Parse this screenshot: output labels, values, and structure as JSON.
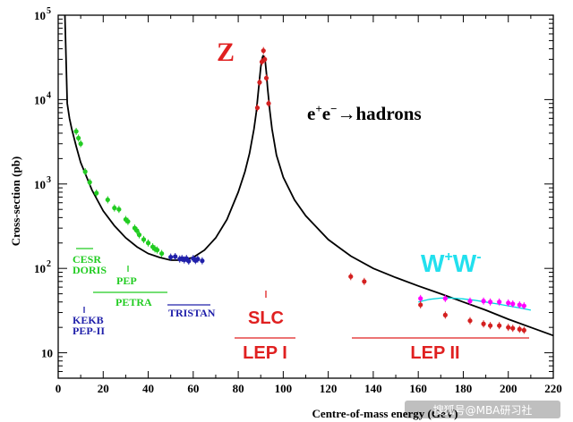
{
  "chart_data": {
    "type": "line",
    "xlabel": "Centre-of-mass energy (GeV)",
    "ylabel": "Cross-section (pb)",
    "xlim": [
      0,
      220
    ],
    "ylim": [
      5,
      100000
    ],
    "yscale": "log",
    "grid": false,
    "x_ticks": [
      "0",
      "20",
      "40",
      "60",
      "80",
      "100",
      "120",
      "140",
      "160",
      "180",
      "200",
      "220"
    ],
    "y_ticks": [
      {
        "value": 10,
        "label": "10",
        "exp": ""
      },
      {
        "value": 100,
        "label": "10",
        "exp": "2"
      },
      {
        "value": 1000,
        "label": "10",
        "exp": "3"
      },
      {
        "value": 10000,
        "label": "10",
        "exp": "4"
      },
      {
        "value": 100000,
        "label": "10",
        "exp": "5"
      }
    ],
    "series": [
      {
        "type": "line",
        "color": "#000000",
        "x": [
          3,
          4,
          5,
          6,
          8,
          10,
          15,
          20,
          25,
          30,
          35,
          40,
          45,
          50,
          55,
          60,
          65,
          70,
          75,
          80,
          83,
          85,
          87,
          88,
          89,
          90,
          90.5,
          91,
          91.2,
          91.5,
          92,
          92.5,
          93,
          94,
          95,
          97,
          100,
          105,
          110,
          120,
          130,
          140,
          150,
          160,
          170,
          180,
          190,
          200,
          210,
          220
        ],
        "y": [
          100000,
          9000,
          6000,
          4500,
          2800,
          1800,
          850,
          480,
          320,
          230,
          180,
          150,
          135,
          125,
          125,
          135,
          165,
          230,
          380,
          800,
          1400,
          2300,
          4500,
          7000,
          13000,
          24000,
          30000,
          33000,
          33000,
          32000,
          28000,
          21000,
          14000,
          7500,
          4500,
          2200,
          1200,
          650,
          420,
          220,
          140,
          100,
          78,
          62,
          50,
          40,
          32,
          25,
          20,
          16
        ]
      },
      {
        "type": "line",
        "color": "#00d8e0",
        "x": [
          160,
          165,
          170,
          175,
          180,
          185,
          190,
          195,
          200,
          205,
          210
        ],
        "y": [
          40,
          43,
          44.5,
          44.5,
          43.5,
          42,
          40,
          38,
          36,
          34,
          32
        ]
      },
      {
        "type": "scatter",
        "color": "#ff00ff",
        "x": [
          161,
          172,
          183,
          189,
          192,
          196,
          200,
          202,
          205,
          207
        ],
        "y": [
          44,
          44,
          41,
          41,
          40,
          40,
          39,
          38,
          37,
          36
        ]
      },
      {
        "type": "scatter",
        "color": "#d42020",
        "x": [
          88.5,
          89.5,
          90.5,
          91.2,
          91.8,
          92.5,
          93.5,
          130,
          136,
          161,
          172,
          183,
          189,
          192,
          196,
          200,
          202,
          205,
          207
        ],
        "y": [
          8000,
          16000,
          28000,
          38000,
          30000,
          18000,
          9000,
          80,
          70,
          37,
          28,
          24,
          22,
          21,
          21,
          20,
          19.5,
          19,
          18.5
        ]
      },
      {
        "type": "scatter",
        "color": "#22cc22",
        "x": [
          8,
          9,
          10,
          12,
          14,
          17,
          22,
          25,
          27,
          30,
          31,
          34,
          35,
          36,
          38,
          40,
          42,
          43,
          44,
          46
        ],
        "y": [
          4200,
          3500,
          3000,
          1400,
          1050,
          780,
          650,
          520,
          500,
          380,
          360,
          300,
          280,
          250,
          220,
          200,
          180,
          170,
          165,
          150
        ]
      },
      {
        "type": "scatter",
        "color": "#2020aa",
        "x": [
          50,
          52,
          54,
          55,
          56,
          57,
          58,
          60,
          61,
          62,
          64
        ],
        "y": [
          136,
          138,
          129,
          131,
          126,
          131,
          122,
          131,
          124,
          129,
          123
        ]
      }
    ],
    "annotations": [
      {
        "id": "z",
        "text": "Z",
        "color": "#e02020"
      },
      {
        "id": "process",
        "text": "e",
        "sup1": "+",
        "text2": "e",
        "sup2": "−",
        "arrow": "→",
        "text3": "hadrons",
        "color": "#000000"
      },
      {
        "id": "ww",
        "text": "W",
        "sup1": "+",
        "text2": "W",
        "sup2": "-",
        "color": "#22e0ee"
      },
      {
        "id": "slc",
        "text": "SLC",
        "color": "#e02020"
      },
      {
        "id": "lep1",
        "text": "LEP I",
        "color": "#e02020"
      },
      {
        "id": "lep2",
        "text": "LEP II",
        "color": "#e02020"
      },
      {
        "id": "cesr",
        "text": "CESR",
        "color": "#22cc22"
      },
      {
        "id": "doris",
        "text": "DORIS",
        "color": "#22cc22"
      },
      {
        "id": "pep",
        "text": "PEP",
        "color": "#22cc22"
      },
      {
        "id": "petra",
        "text": "PETRA",
        "color": "#22cc22"
      },
      {
        "id": "kekb",
        "text": "KEKB",
        "color": "#2020aa"
      },
      {
        "id": "pep2",
        "text": "PEP-II",
        "color": "#2020aa"
      },
      {
        "id": "tristan",
        "text": "TRISTAN",
        "color": "#2020aa"
      }
    ]
  },
  "watermark": "搜狐号@MBA研习社"
}
